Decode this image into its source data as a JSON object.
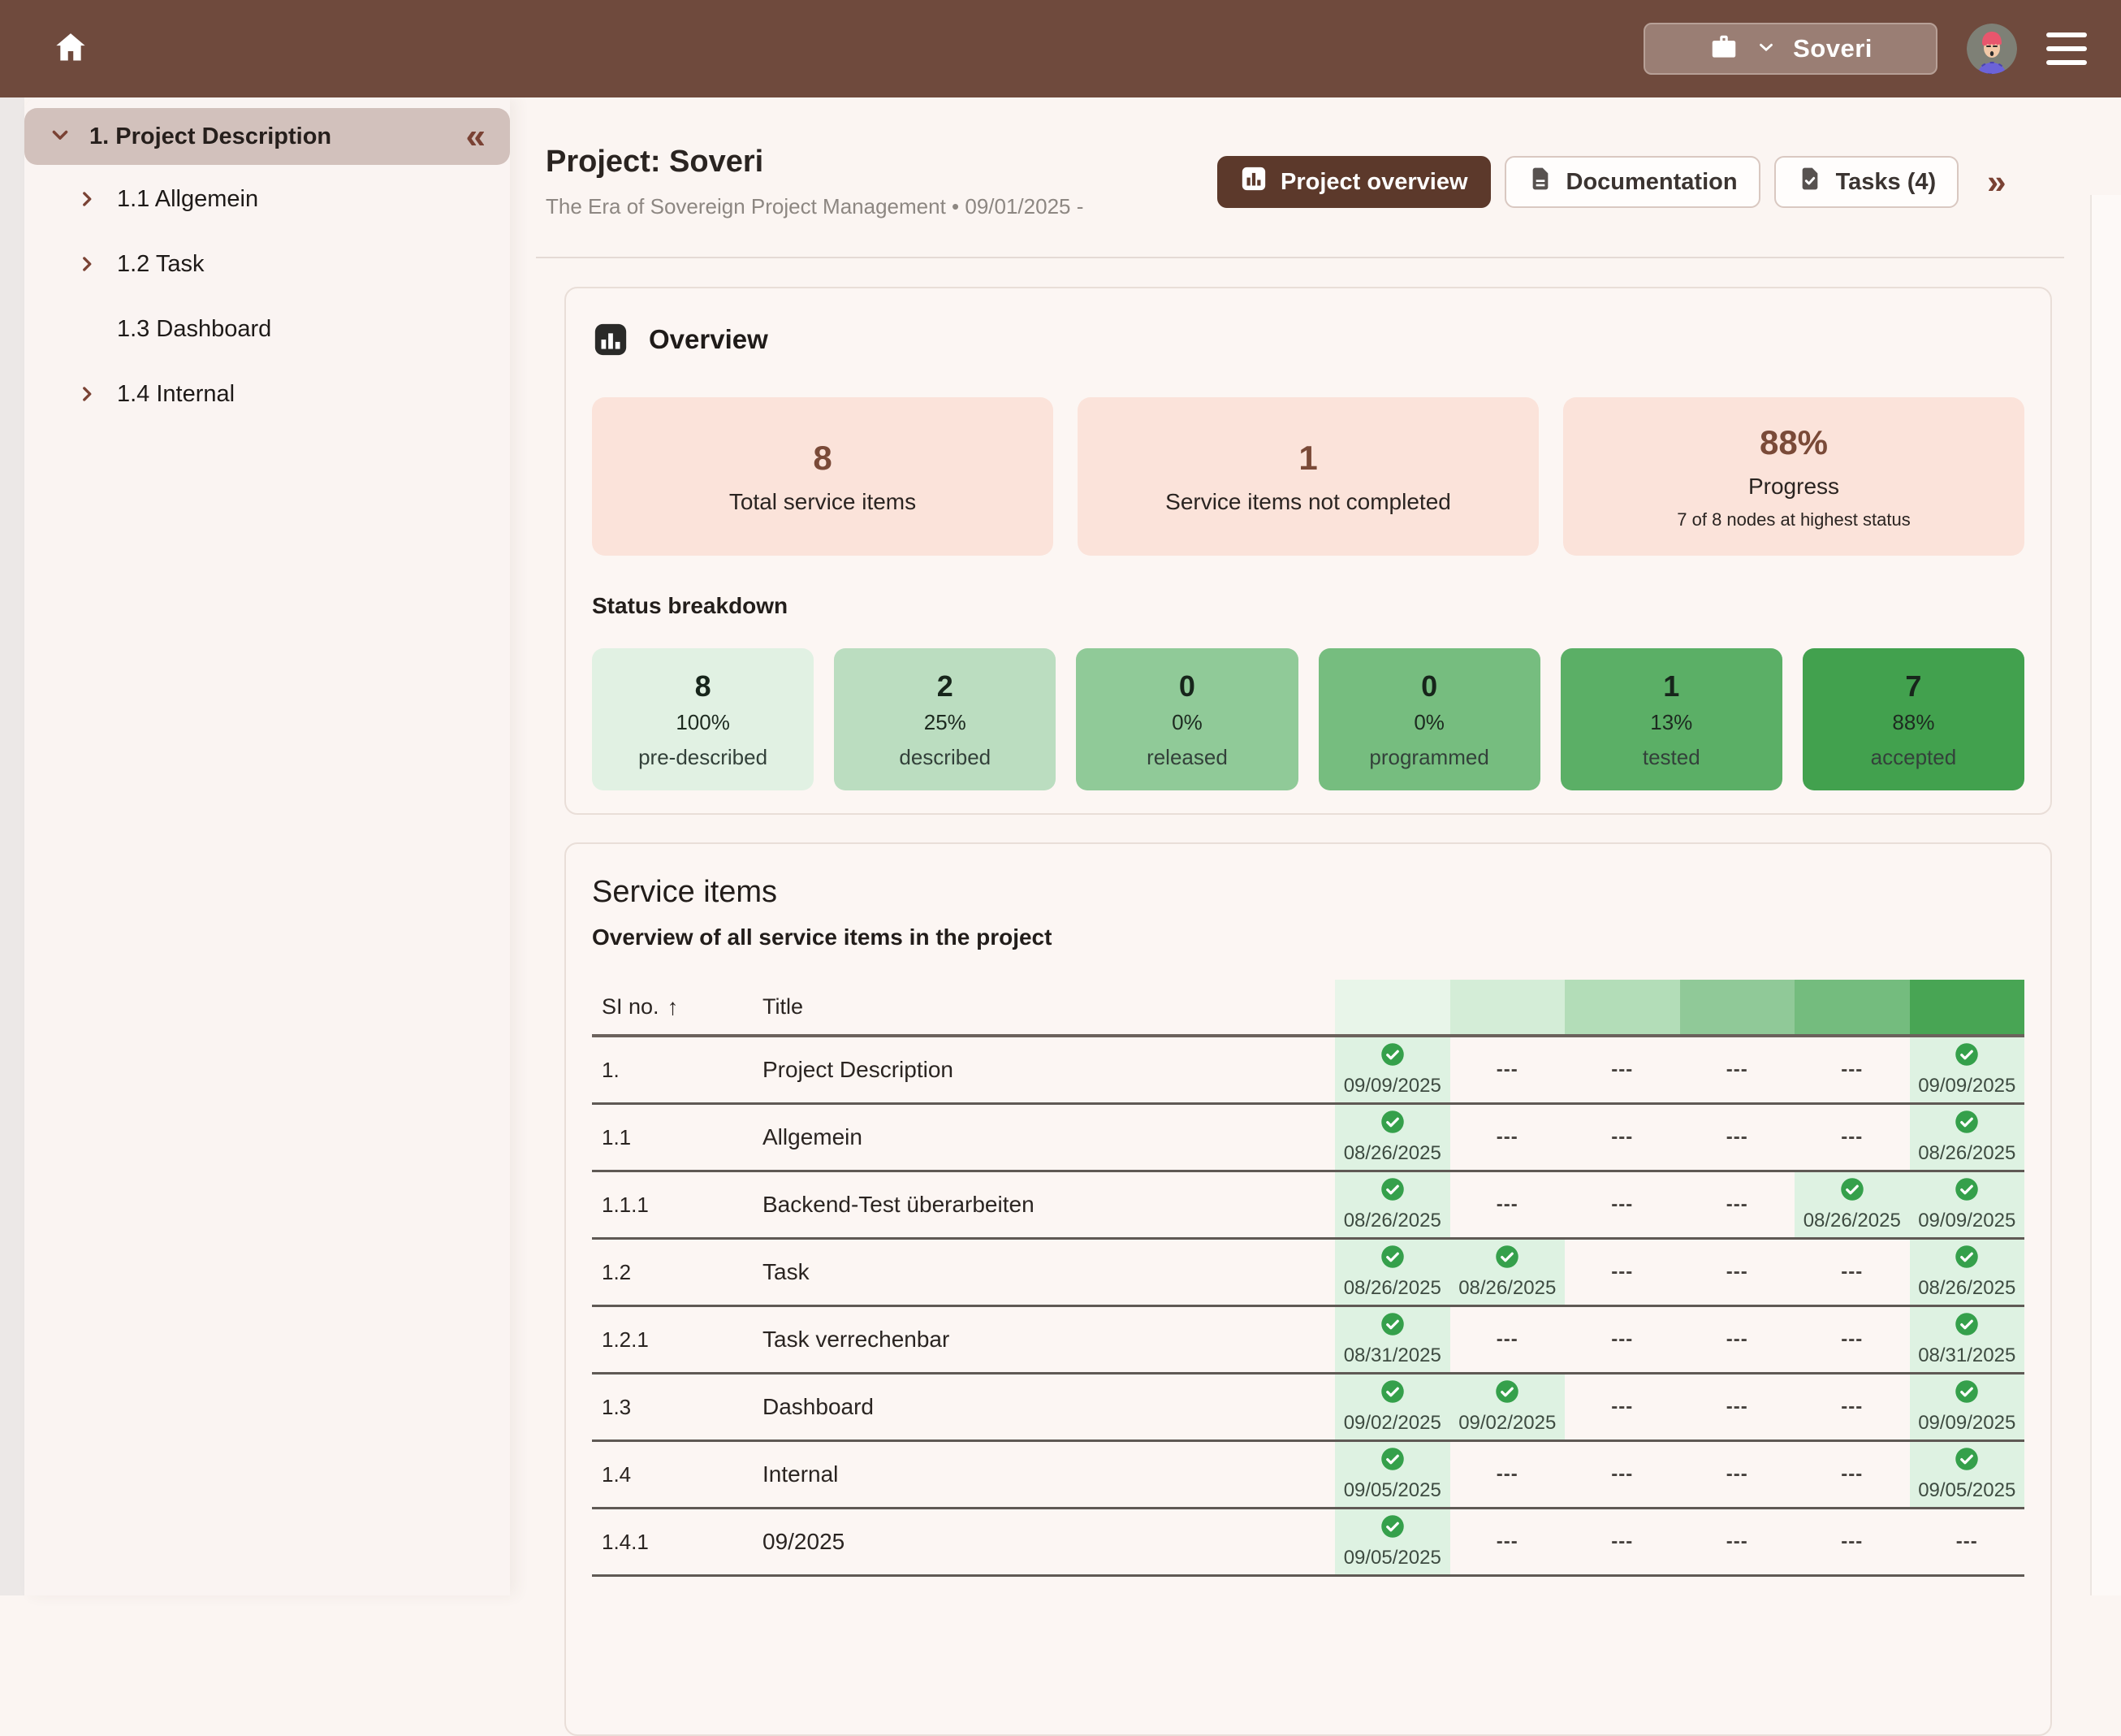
{
  "topbar": {
    "workspace_label": "Soveri"
  },
  "sidebar": {
    "root_label": "1. Project Description",
    "collapse_icon": "«",
    "items": [
      {
        "label": "1.1 Allgemein",
        "has_children": true
      },
      {
        "label": "1.2 Task",
        "has_children": true
      },
      {
        "label": "1.3 Dashboard",
        "has_children": false
      },
      {
        "label": "1.4 Internal",
        "has_children": true
      }
    ]
  },
  "page": {
    "title": "Project: Soveri",
    "subtitle": "The Era of Sovereign Project Management • 09/01/2025 -",
    "tabs": [
      {
        "label": "Project overview"
      },
      {
        "label": "Documentation"
      },
      {
        "label": "Tasks (4)"
      }
    ],
    "more_icon": "»"
  },
  "overview": {
    "title": "Overview",
    "stats": [
      {
        "value": "8",
        "label": "Total service items"
      },
      {
        "value": "1",
        "label": "Service items not completed"
      },
      {
        "value": "88%",
        "label": "Progress",
        "sublabel": "7 of 8 nodes at highest status"
      }
    ],
    "status_breakdown": {
      "title": "Status breakdown",
      "cards": [
        {
          "count": "8",
          "percent": "100%",
          "label": "pre-described",
          "color": "#E1F1E3"
        },
        {
          "count": "2",
          "percent": "25%",
          "label": "described",
          "color": "#BBDDC0"
        },
        {
          "count": "0",
          "percent": "0%",
          "label": "released",
          "color": "#90CA98"
        },
        {
          "count": "0",
          "percent": "0%",
          "label": "programmed",
          "color": "#76BD7F"
        },
        {
          "count": "1",
          "percent": "13%",
          "label": "tested",
          "color": "#5BAF66"
        },
        {
          "count": "7",
          "percent": "88%",
          "label": "accepted",
          "color": "#42A14E"
        }
      ]
    }
  },
  "service_items": {
    "title": "Service items",
    "subtitle": "Overview of all service items in the project",
    "col_si": "SI no.",
    "sort_icon": "↑",
    "col_title": "Title",
    "empty_cell": "---",
    "header_band_colors": [
      "#E8F5E9",
      "#D4EDD7",
      "#B3DDB8",
      "#90C998",
      "#74BC7E",
      "#48A554"
    ],
    "cell_bg": "#DEF2E2",
    "check_color": "#35A04B",
    "rows": [
      {
        "si": "1.",
        "title": "Project Description",
        "cells": [
          "09/09/2025",
          null,
          null,
          null,
          null,
          "09/09/2025"
        ]
      },
      {
        "si": "1.1",
        "title": "Allgemein",
        "cells": [
          "08/26/2025",
          null,
          null,
          null,
          null,
          "08/26/2025"
        ]
      },
      {
        "si": "1.1.1",
        "title": "Backend-Test überarbeiten",
        "cells": [
          "08/26/2025",
          null,
          null,
          null,
          "08/26/2025",
          "09/09/2025"
        ]
      },
      {
        "si": "1.2",
        "title": "Task",
        "cells": [
          "08/26/2025",
          "08/26/2025",
          null,
          null,
          null,
          "08/26/2025"
        ]
      },
      {
        "si": "1.2.1",
        "title": "Task verrechenbar",
        "cells": [
          "08/31/2025",
          null,
          null,
          null,
          null,
          "08/31/2025"
        ]
      },
      {
        "si": "1.3",
        "title": "Dashboard",
        "cells": [
          "09/02/2025",
          "09/02/2025",
          null,
          null,
          null,
          "09/09/2025"
        ]
      },
      {
        "si": "1.4",
        "title": "Internal",
        "cells": [
          "09/05/2025",
          null,
          null,
          null,
          null,
          "09/05/2025"
        ]
      },
      {
        "si": "1.4.1",
        "title": "09/2025",
        "cells": [
          "09/05/2025",
          null,
          null,
          null,
          null,
          null
        ]
      }
    ]
  }
}
